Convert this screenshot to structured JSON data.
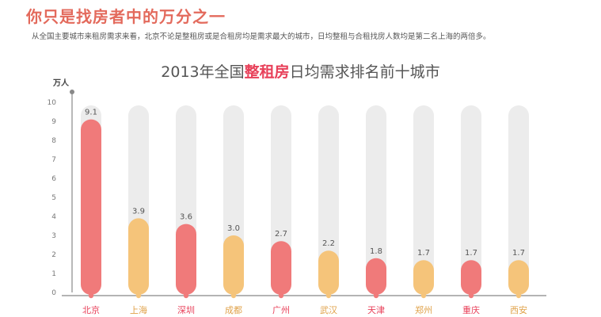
{
  "header": {
    "title": "你只是找房者中的万分之一",
    "subtitle": "从全国主要城市来租房需求来看，北京不论是整租房或是合租房均是需求最大的城市，日均整租与合租找房人数均是第二名上海的两倍多。"
  },
  "chart_title": {
    "prefix": "2013年全国",
    "highlight": "整租房",
    "suffix": "日均需求排名前十城市"
  },
  "chart_data": {
    "type": "bar",
    "title": "2013年全国整租房日均需求排名前十城市",
    "ylabel": "万人",
    "ylim": [
      0,
      10
    ],
    "yticks": [
      0,
      1,
      2,
      3,
      4,
      5,
      6,
      7,
      8,
      9,
      10
    ],
    "categories": [
      "北京",
      "上海",
      "深圳",
      "成都",
      "广州",
      "武汉",
      "天津",
      "郑州",
      "重庆",
      "西安"
    ],
    "values": [
      9.1,
      3.9,
      3.6,
      3.0,
      2.7,
      2.2,
      1.8,
      1.7,
      1.7,
      1.7
    ],
    "value_labels": [
      "9.1",
      "3.9",
      "3.6",
      "3.0",
      "2.7",
      "2.2",
      "1.8",
      "1.7",
      "1.7",
      "1.7"
    ],
    "grid": false,
    "colors": {
      "red": "#f07a7a",
      "yellow": "#f5c47a",
      "track": "#ececec",
      "red_label": "#e8415a",
      "yellow_label": "#e0a24a",
      "axis": "#888888"
    },
    "bar_colors": [
      "red",
      "yellow",
      "red",
      "yellow",
      "red",
      "yellow",
      "red",
      "yellow",
      "red",
      "yellow"
    ]
  }
}
